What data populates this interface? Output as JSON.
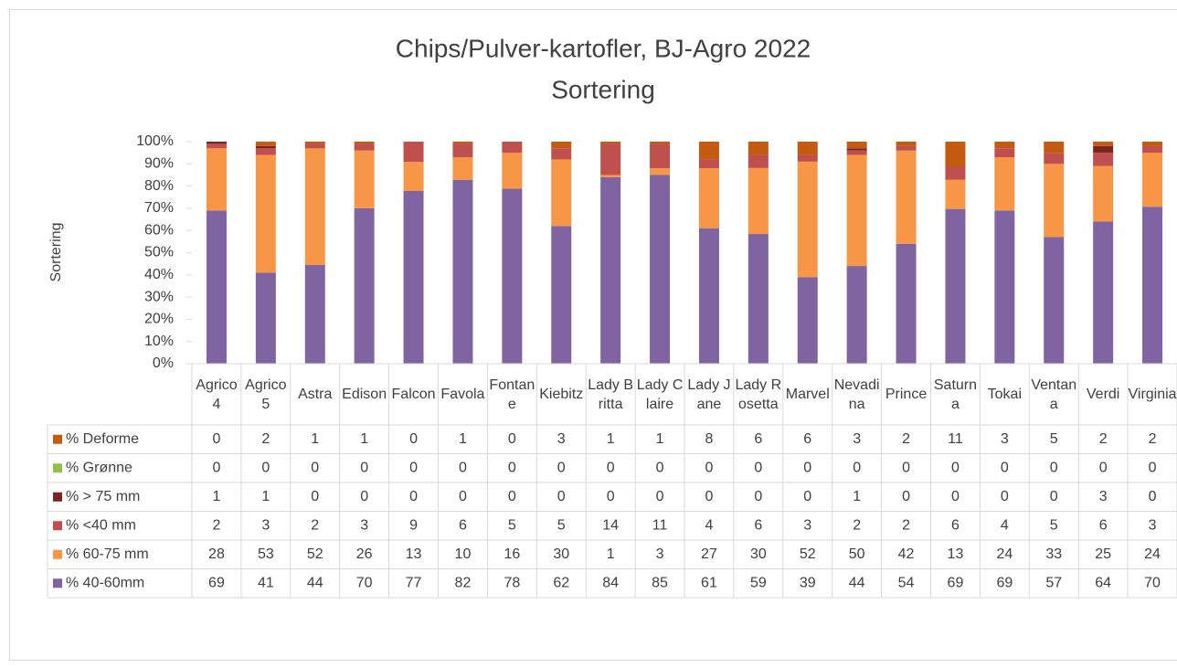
{
  "chart_data": {
    "type": "bar",
    "stacking": "percent",
    "title": "Chips/Pulver-kartofler, BJ-Agro 2022",
    "subtitle": "Sortering",
    "y_label": "Sortering",
    "categories": [
      "Agrico 4",
      "Agrico 5",
      "Astra",
      "Edison",
      "Falcon",
      "Favola",
      "Fontane",
      "Kiebitz",
      "Lady Britta",
      "Lady Claire",
      "Lady Jane",
      "Lady Rosetta",
      "Marvel",
      "Nevadina",
      "Prince",
      "Saturna",
      "Tokai",
      "Ventana",
      "Verdi",
      "Virginia"
    ],
    "series": [
      {
        "name": "% Deforme",
        "color": "#c55a11",
        "values": [
          0,
          2,
          1,
          1,
          0,
          1,
          0,
          3,
          1,
          1,
          8,
          6,
          6,
          3,
          2,
          11,
          3,
          5,
          2,
          2
        ]
      },
      {
        "name": "% Grønne",
        "color": "#92c04f",
        "values": [
          0,
          0,
          0,
          0,
          0,
          0,
          0,
          0,
          0,
          0,
          0,
          0,
          0,
          0,
          0,
          0,
          0,
          0,
          0,
          0
        ]
      },
      {
        "name": "% > 75 mm",
        "color": "#7b2520",
        "values": [
          1,
          1,
          0,
          0,
          0,
          0,
          0,
          0,
          0,
          0,
          0,
          0,
          0,
          1,
          0,
          0,
          0,
          0,
          3,
          0
        ]
      },
      {
        "name": "% <40 mm",
        "color": "#c0504d",
        "values": [
          2,
          3,
          2,
          3,
          9,
          6,
          5,
          5,
          14,
          11,
          4,
          6,
          3,
          2,
          2,
          6,
          4,
          5,
          6,
          3
        ]
      },
      {
        "name": "% 60-75 mm",
        "color": "#f79646",
        "values": [
          28,
          53,
          52,
          26,
          13,
          10,
          16,
          30,
          1,
          3,
          27,
          30,
          52,
          50,
          42,
          13,
          24,
          33,
          25,
          24
        ]
      },
      {
        "name": "% 40-60mm",
        "color": "#8064a2",
        "values": [
          69,
          41,
          44,
          70,
          77,
          82,
          78,
          62,
          84,
          85,
          61,
          59,
          39,
          44,
          54,
          69,
          69,
          57,
          64,
          70
        ]
      }
    ],
    "ylim": [
      0,
      100
    ],
    "yticks": [
      {
        "value": 0,
        "label": "0%"
      },
      {
        "value": 10,
        "label": "10%"
      },
      {
        "value": 20,
        "label": "20%"
      },
      {
        "value": 30,
        "label": "30%"
      },
      {
        "value": 40,
        "label": "40%"
      },
      {
        "value": 50,
        "label": "50%"
      },
      {
        "value": 60,
        "label": "60%"
      },
      {
        "value": 70,
        "label": "70%"
      },
      {
        "value": 80,
        "label": "80%"
      },
      {
        "value": 90,
        "label": "90%"
      },
      {
        "value": 100,
        "label": "100%"
      }
    ],
    "data_table": true
  }
}
